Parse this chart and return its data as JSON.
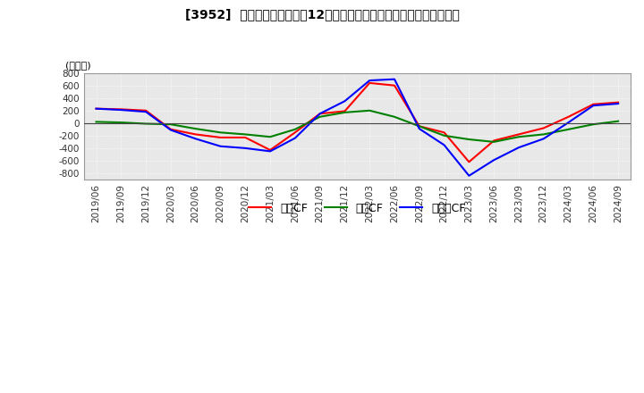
{
  "title": "[3952]  キャッシュフローの12か月移動合計の対前年同期増減額の推移",
  "ylabel": "(百万円)",
  "ylim": [
    -900,
    800
  ],
  "yticks": [
    -800,
    -600,
    -400,
    -200,
    0,
    200,
    400,
    600,
    800
  ],
  "legend_labels": [
    "営業CF",
    "投資CF",
    "フリーCF"
  ],
  "colors": {
    "営業CF": "#ff0000",
    "投資CF": "#008000",
    "フリーCF": "#0000ff"
  },
  "dates": [
    "2019/06",
    "2019/09",
    "2019/12",
    "2020/03",
    "2020/06",
    "2020/09",
    "2020/12",
    "2021/03",
    "2021/06",
    "2021/09",
    "2021/12",
    "2022/03",
    "2022/06",
    "2022/09",
    "2022/12",
    "2023/03",
    "2023/06",
    "2023/09",
    "2023/12",
    "2024/03",
    "2024/06",
    "2024/09"
  ],
  "営業CF": [
    230,
    220,
    200,
    -100,
    -180,
    -230,
    -230,
    -430,
    -150,
    150,
    190,
    640,
    600,
    -50,
    -150,
    -620,
    -280,
    -180,
    -80,
    100,
    300,
    330
  ],
  "投資CF": [
    20,
    10,
    -10,
    -20,
    -90,
    -150,
    -180,
    -220,
    -100,
    100,
    170,
    200,
    100,
    -50,
    -200,
    -260,
    -300,
    -220,
    -180,
    -100,
    -20,
    30
  ],
  "フリーCF": [
    230,
    210,
    180,
    -110,
    -250,
    -370,
    -400,
    -450,
    -240,
    150,
    350,
    680,
    700,
    -90,
    -350,
    -840,
    -590,
    -390,
    -250,
    10,
    280,
    310
  ]
}
